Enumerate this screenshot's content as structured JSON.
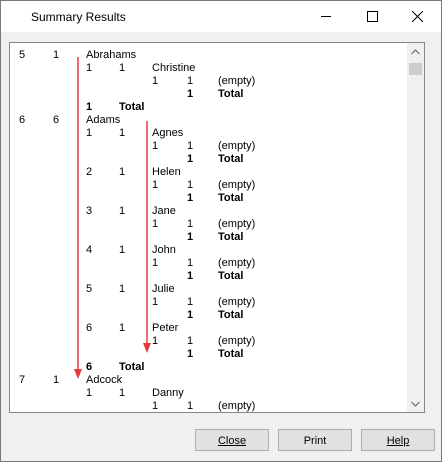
{
  "window": {
    "title": "Summary Results"
  },
  "rows": [
    {
      "c": [
        "5",
        "1",
        "Abrahams",
        "",
        "",
        "",
        "",
        "",
        ""
      ]
    },
    {
      "c": [
        "",
        "",
        "1",
        "1",
        "Christine",
        "",
        "",
        "",
        ""
      ]
    },
    {
      "c": [
        "",
        "",
        "",
        "",
        "1",
        "1",
        "(empty)",
        "",
        ""
      ]
    },
    {
      "c": [
        "",
        "",
        "",
        "",
        "",
        "1",
        "Total",
        "",
        ""
      ]
    },
    {
      "c": [
        "",
        "",
        "1",
        "Total",
        "",
        "",
        "",
        "",
        ""
      ]
    },
    {
      "c": [
        "6",
        "6",
        "Adams",
        "",
        "",
        "",
        "",
        "",
        ""
      ]
    },
    {
      "c": [
        "",
        "",
        "1",
        "1",
        "Agnes",
        "",
        "",
        "",
        ""
      ]
    },
    {
      "c": [
        "",
        "",
        "",
        "",
        "1",
        "1",
        "(empty)",
        "",
        ""
      ]
    },
    {
      "c": [
        "",
        "",
        "",
        "",
        "",
        "1",
        "Total",
        "",
        ""
      ]
    },
    {
      "c": [
        "",
        "",
        "2",
        "1",
        "Helen",
        "",
        "",
        "",
        ""
      ]
    },
    {
      "c": [
        "",
        "",
        "",
        "",
        "1",
        "1",
        "(empty)",
        "",
        ""
      ]
    },
    {
      "c": [
        "",
        "",
        "",
        "",
        "",
        "1",
        "Total",
        "",
        ""
      ]
    },
    {
      "c": [
        "",
        "",
        "3",
        "1",
        "Jane",
        "",
        "",
        "",
        ""
      ]
    },
    {
      "c": [
        "",
        "",
        "",
        "",
        "1",
        "1",
        "(empty)",
        "",
        ""
      ]
    },
    {
      "c": [
        "",
        "",
        "",
        "",
        "",
        "1",
        "Total",
        "",
        ""
      ]
    },
    {
      "c": [
        "",
        "",
        "4",
        "1",
        "John",
        "",
        "",
        "",
        ""
      ]
    },
    {
      "c": [
        "",
        "",
        "",
        "",
        "1",
        "1",
        "(empty)",
        "",
        ""
      ]
    },
    {
      "c": [
        "",
        "",
        "",
        "",
        "",
        "1",
        "Total",
        "",
        ""
      ]
    },
    {
      "c": [
        "",
        "",
        "5",
        "1",
        "Julie",
        "",
        "",
        "",
        ""
      ]
    },
    {
      "c": [
        "",
        "",
        "",
        "",
        "1",
        "1",
        "(empty)",
        "",
        ""
      ]
    },
    {
      "c": [
        "",
        "",
        "",
        "",
        "",
        "1",
        "Total",
        "",
        ""
      ]
    },
    {
      "c": [
        "",
        "",
        "6",
        "1",
        "Peter",
        "",
        "",
        "",
        ""
      ]
    },
    {
      "c": [
        "",
        "",
        "",
        "",
        "1",
        "1",
        "(empty)",
        "",
        ""
      ]
    },
    {
      "c": [
        "",
        "",
        "",
        "",
        "",
        "1",
        "Total",
        "",
        ""
      ]
    },
    {
      "c": [
        "",
        "",
        "6",
        "Total",
        "",
        "",
        "",
        "",
        ""
      ]
    },
    {
      "c": [
        "7",
        "1",
        "Adcock",
        "",
        "",
        "",
        "",
        "",
        ""
      ]
    },
    {
      "c": [
        "",
        "",
        "1",
        "1",
        "Danny",
        "",
        "",
        "",
        ""
      ]
    },
    {
      "c": [
        "",
        "",
        "",
        "",
        "1",
        "1",
        "(empty)",
        "",
        ""
      ]
    }
  ],
  "buttons": {
    "close": "Close",
    "print": "Print",
    "help": "Help"
  },
  "colors": {
    "arrow": "#e8383d"
  }
}
